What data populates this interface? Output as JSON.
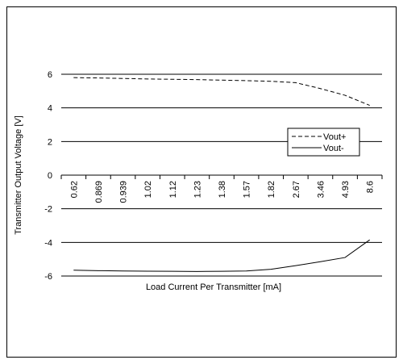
{
  "chart_data": {
    "type": "line",
    "xlabel": "Load Current Per Transmitter [mA]",
    "ylabel": "Transmitter Output Voltage [V]",
    "ylim": [
      -6,
      6
    ],
    "yticks": [
      "-6",
      "-4",
      "-2",
      "0",
      "2",
      "4",
      "6"
    ],
    "categories": [
      "0.62",
      "0.869",
      "0.939",
      "1.02",
      "1.12",
      "1.23",
      "1.38",
      "1.57",
      "1.82",
      "2.67",
      "3.46",
      "4.93",
      "8.6"
    ],
    "grid": "horizontal",
    "legend_position": "right",
    "series": [
      {
        "name": "Vout+",
        "style": "dashed",
        "color": "#000000",
        "values": [
          5.8,
          5.78,
          5.75,
          5.72,
          5.7,
          5.68,
          5.65,
          5.62,
          5.58,
          5.5,
          5.15,
          4.75,
          4.15
        ]
      },
      {
        "name": "Vout-",
        "style": "solid",
        "color": "#000000",
        "values": [
          -5.65,
          -5.68,
          -5.7,
          -5.71,
          -5.72,
          -5.73,
          -5.72,
          -5.7,
          -5.6,
          -5.38,
          -5.15,
          -4.9,
          -3.85
        ]
      }
    ]
  }
}
